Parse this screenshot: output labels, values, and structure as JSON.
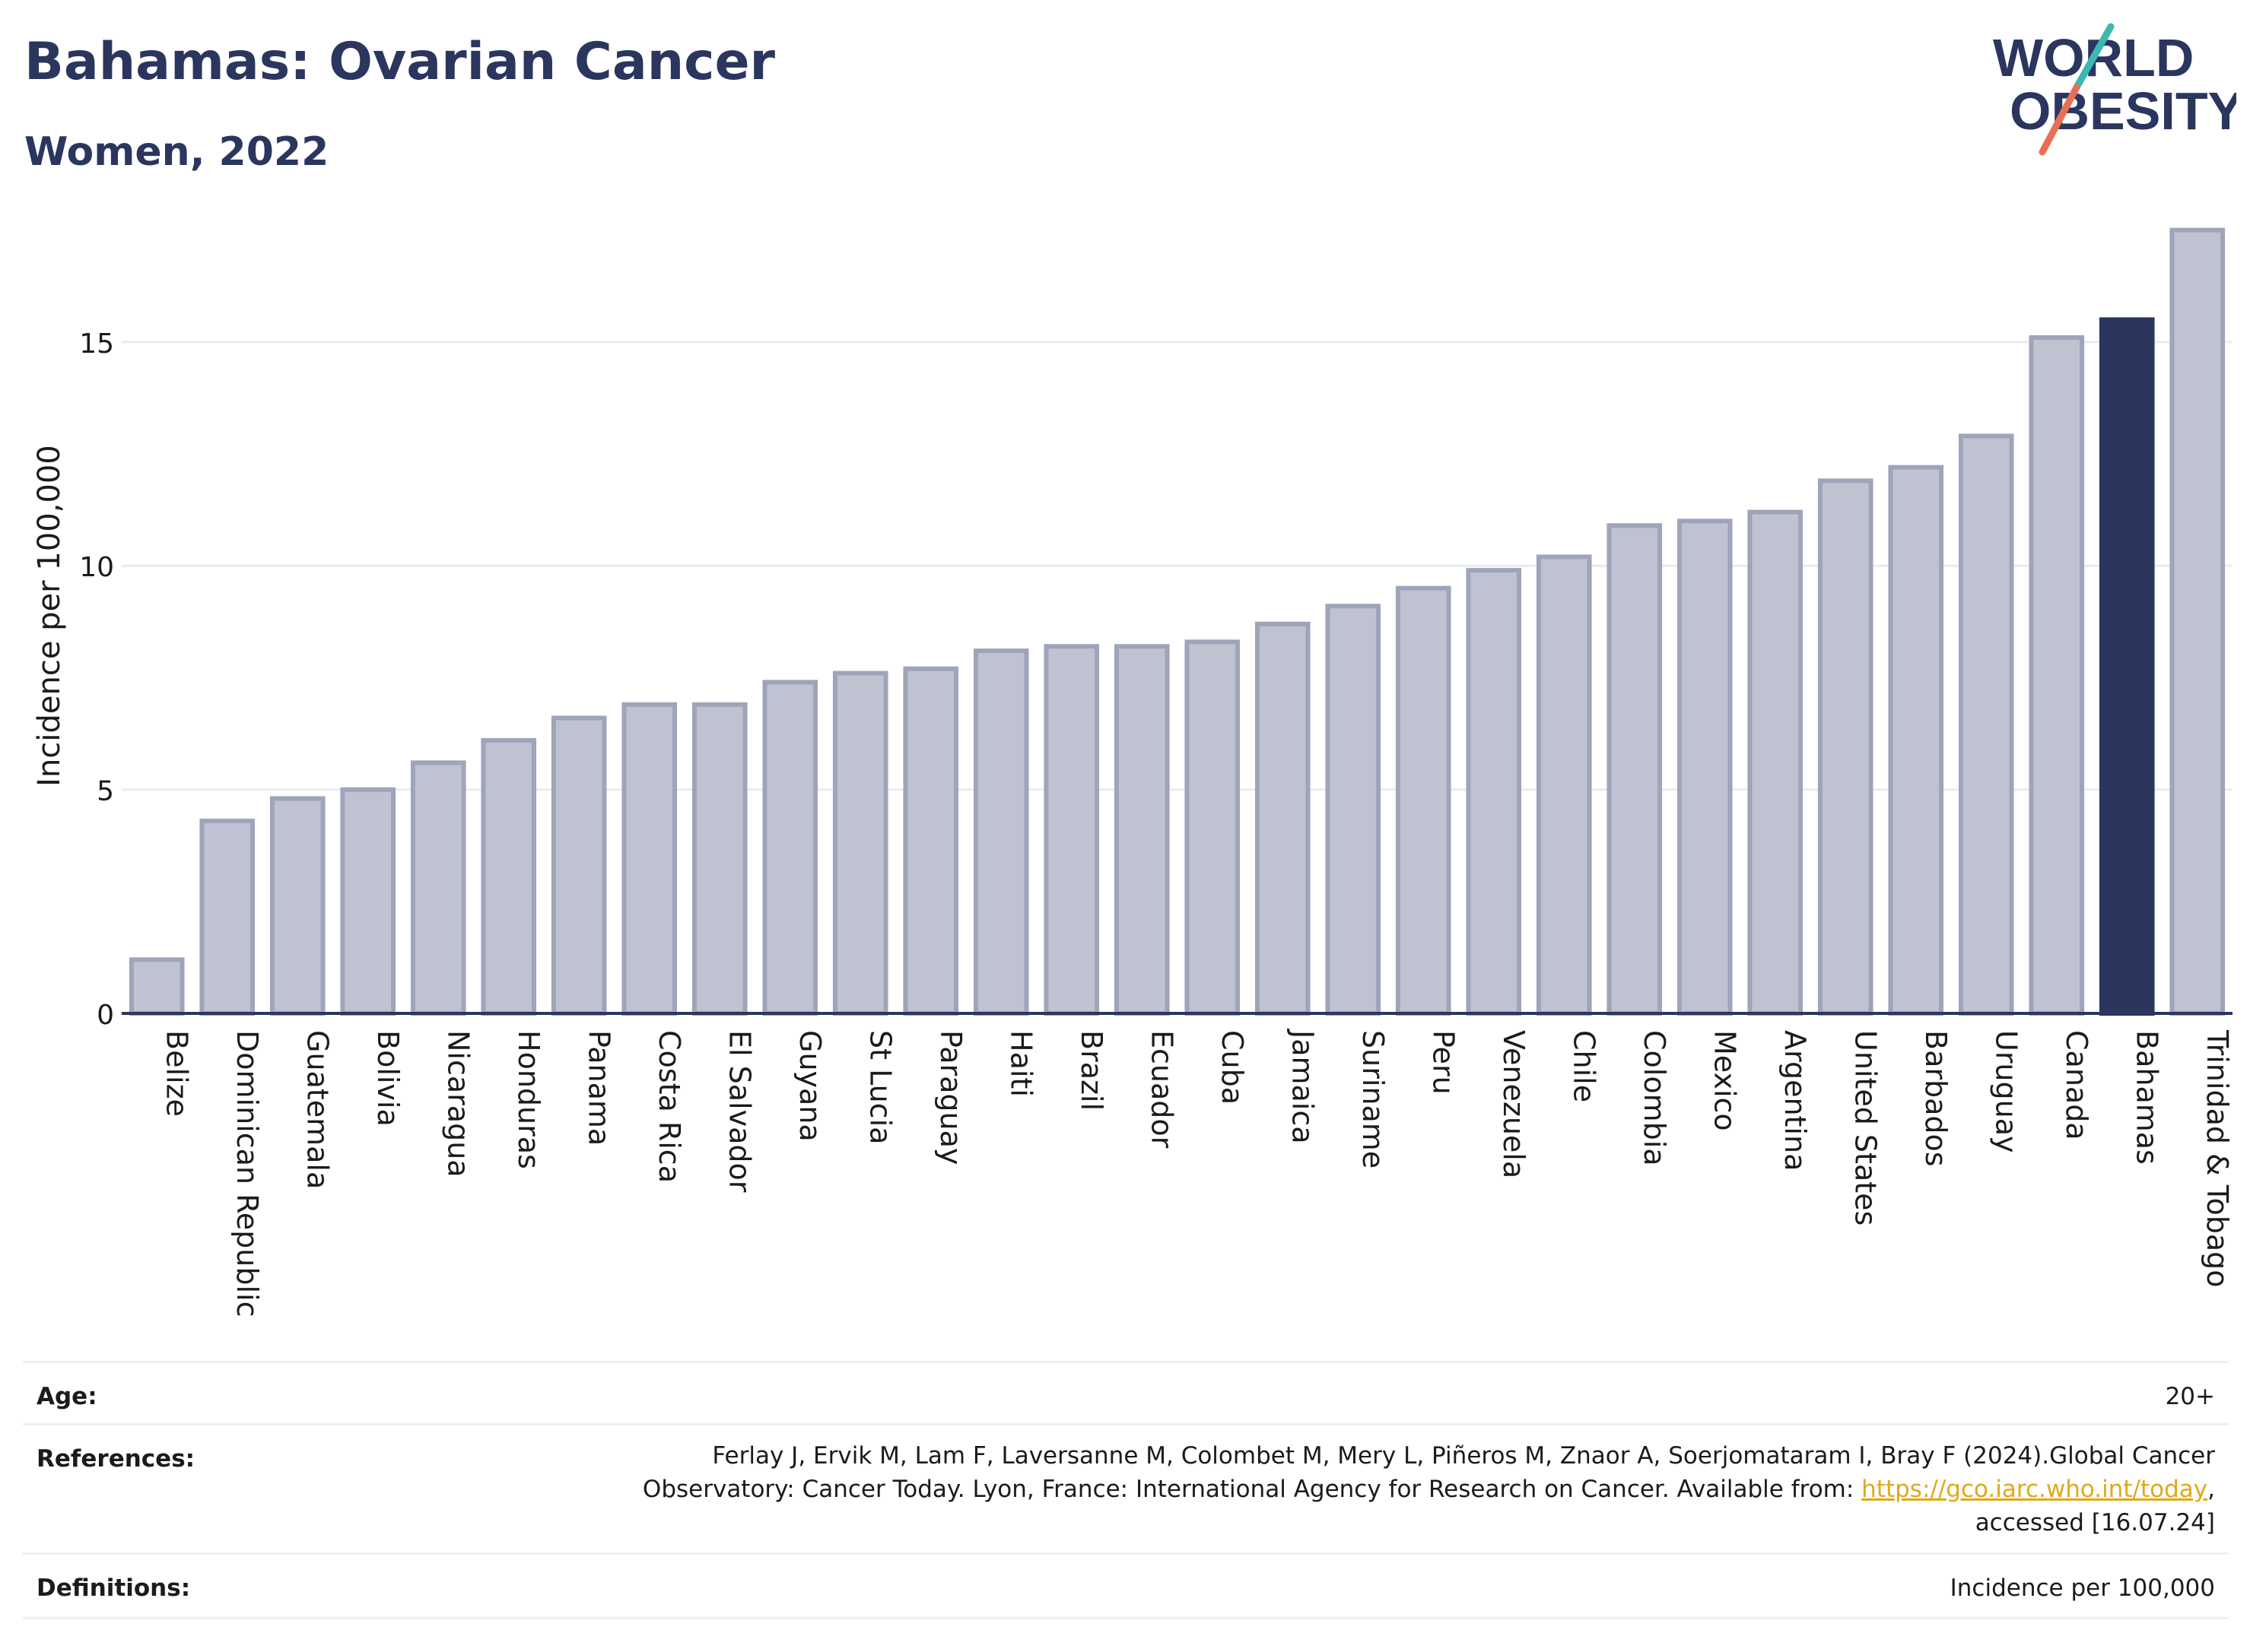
{
  "title": "Bahamas: Ovarian Cancer",
  "subtitle": "Women, 2022",
  "logo": {
    "line1": "WORLD",
    "line2": "OBESITY",
    "accent_top": "#3db7b1",
    "accent_bottom": "#e86f55"
  },
  "colors": {
    "bar": "#bfc3d1",
    "bar_border": "#9ea4b9",
    "highlight": "#2b365f",
    "grid": "#e8ebef",
    "axis": "#2b365f"
  },
  "chart_data": {
    "type": "bar",
    "ylabel": "Incidence per 100,000",
    "xlabel": "",
    "ylim": [
      0,
      17.8
    ],
    "yticks": [
      0,
      5,
      10,
      15
    ],
    "highlight": "Bahamas",
    "categories": [
      "Belize",
      "Dominican Republic",
      "Guatemala",
      "Bolivia",
      "Nicaragua",
      "Honduras",
      "Panama",
      "Costa Rica",
      "El Salvador",
      "Guyana",
      "St Lucia",
      "Paraguay",
      "Haiti",
      "Brazil",
      "Ecuador",
      "Cuba",
      "Jamaica",
      "Suriname",
      "Peru",
      "Venezuela",
      "Chile",
      "Colombia",
      "Mexico",
      "Argentina",
      "United States",
      "Barbados",
      "Uruguay",
      "Canada",
      "Bahamas",
      "Trinidad & Tobago"
    ],
    "values": [
      1.2,
      4.3,
      4.8,
      5.0,
      5.6,
      6.1,
      6.6,
      6.9,
      6.9,
      7.4,
      7.6,
      7.7,
      8.1,
      8.2,
      8.2,
      8.3,
      8.7,
      9.1,
      9.5,
      9.9,
      10.2,
      10.9,
      11.0,
      11.2,
      11.9,
      12.2,
      12.9,
      15.1,
      15.5,
      17.5
    ]
  },
  "footer": {
    "age_label": "Age:",
    "age_value": "20+",
    "references_label": "References:",
    "references_line1": "Ferlay J, Ervik M, Lam F, Laversanne M, Colombet M, Mery L, Piñeros M, Znaor A, Soerjomataram I, Bray F (2024).Global Cancer",
    "references_line2_pre": "Observatory: Cancer Today. Lyon, France: International Agency for Research on Cancer. Available from: ",
    "references_link": "https://gco.iarc.who.int/today",
    "references_line2_post": ",",
    "references_line3": "accessed [16.07.24]",
    "definitions_label": "Definitions:",
    "definitions_value": "Incidence per 100,000"
  }
}
